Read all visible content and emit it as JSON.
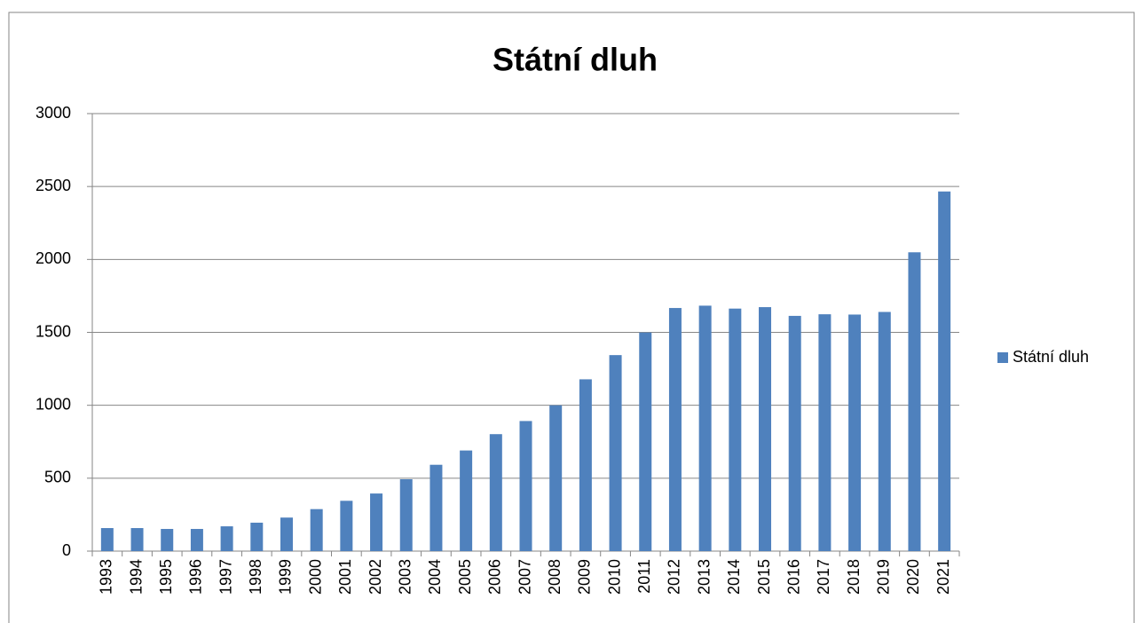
{
  "chart_data": {
    "type": "bar",
    "title": "Státní dluh",
    "categories": [
      "1993",
      "1994",
      "1995",
      "1996",
      "1997",
      "1998",
      "1999",
      "2000",
      "2001",
      "2002",
      "2003",
      "2004",
      "2005",
      "2006",
      "2007",
      "2008",
      "2009",
      "2010",
      "2011",
      "2012",
      "2013",
      "2014",
      "2015",
      "2016",
      "2017",
      "2018",
      "2019",
      "2020",
      "2021"
    ],
    "series": [
      {
        "name": "Státní dluh",
        "color": "#4f81bd",
        "values": [
          158,
          158,
          152,
          152,
          170,
          195,
          230,
          288,
          345,
          395,
          493,
          592,
          690,
          802,
          892,
          1000,
          1178,
          1344,
          1499,
          1667,
          1683,
          1663,
          1673,
          1613,
          1624,
          1622,
          1640,
          2049,
          2466
        ]
      }
    ],
    "ylim": [
      0,
      3000
    ],
    "yticks": [
      0,
      500,
      1000,
      1500,
      2000,
      2500,
      3000
    ],
    "grid": true,
    "legend": "right"
  }
}
